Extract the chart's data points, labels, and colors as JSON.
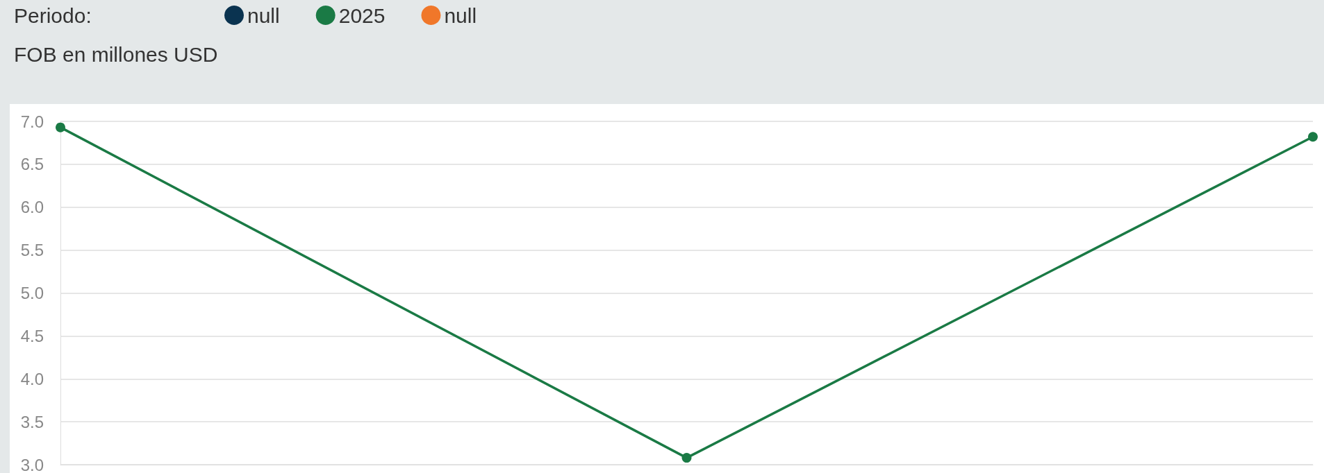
{
  "chart_data": {
    "type": "line",
    "legend_title": "Periodo:",
    "ylabel": "FOB en millones USD",
    "categories": [
      null,
      null,
      null
    ],
    "series": [
      {
        "name": "null",
        "color": "#0a3350",
        "values": [
          null,
          null,
          null
        ]
      },
      {
        "name": "2025",
        "color": "#1a7a45",
        "values": [
          6.93,
          3.08,
          6.82
        ]
      },
      {
        "name": "null",
        "color": "#f0772a",
        "values": [
          null,
          null,
          null
        ]
      }
    ],
    "ylim": [
      3,
      7
    ],
    "yticks": [
      {
        "value": 3,
        "label": "3.0"
      },
      {
        "value": 3.5,
        "label": "3.5"
      },
      {
        "value": 4,
        "label": "4.0"
      },
      {
        "value": 4.5,
        "label": "4.5"
      },
      {
        "value": 5,
        "label": "5.0"
      },
      {
        "value": 5.5,
        "label": "5.5"
      },
      {
        "value": 6,
        "label": "6.0"
      },
      {
        "value": 6.5,
        "label": "6.5"
      },
      {
        "value": 7,
        "label": "7.0"
      }
    ],
    "grid": "y",
    "legend": "top left",
    "marker": "circle",
    "line_style": "solid",
    "tick_labels": "y"
  }
}
